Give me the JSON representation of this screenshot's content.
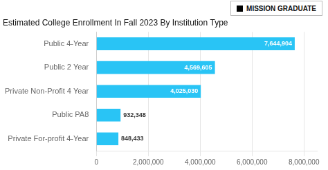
{
  "chart_data": {
    "type": "bar",
    "orientation": "horizontal",
    "title": "Estimated College Enrollment In Fall 2023 By Institution Type",
    "categories": [
      "Private For-profit 4-Year",
      "Public PA8",
      "Private Non-Profit 4 Year",
      "Public 2 Year",
      "Public 4-Year"
    ],
    "values": [
      848433,
      932348,
      4025030,
      4569605,
      7644904
    ],
    "value_labels": [
      "848,433",
      "932,348",
      "4,025,030",
      "4,569,605",
      "7,644,904"
    ],
    "data_labels": true,
    "color": "#29c4f5",
    "xlim": [
      0,
      8500000
    ],
    "xticks": [
      0,
      {
        "value": 2000000,
        "label": "2,000,000"
      },
      {
        "value": 4000000,
        "label": "4,000,000"
      },
      {
        "value": 6000000,
        "label": "6,000,000"
      },
      {
        "value": 8000000,
        "label": "8,000,000"
      }
    ],
    "grid": true,
    "annotations": [
      "MISSION GRADUATE"
    ]
  }
}
